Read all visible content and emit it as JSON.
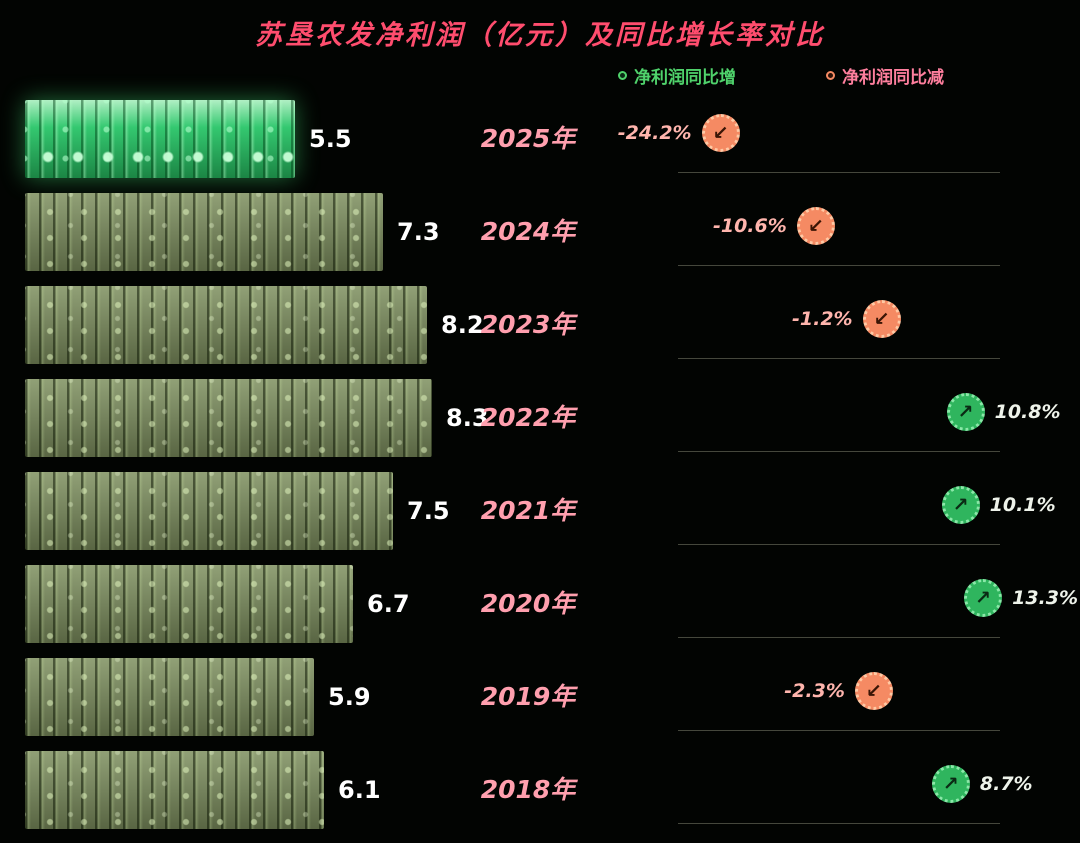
{
  "title": "苏垦农发净利润（亿元）及同比增长率对比",
  "legend": {
    "increase_label": "净利润同比增",
    "decrease_label": "净利润同比减"
  },
  "colors": {
    "background": "#020402",
    "title": "#ff4d6e",
    "year_label": "#ff9fae",
    "bar_value": "#ffffff",
    "bar_dim": "#7f9160",
    "bar_bright": "#2ec06a",
    "increase_icon": "#2fb55e",
    "decrease_icon": "#f58a63",
    "negative_text": "#ffb5ad",
    "positive_text": "#eef3ea"
  },
  "icons": {
    "decrease_arrow": "↙",
    "increase_arrow": "↗",
    "decrease_icon_name": "arrow-down-left-icon",
    "increase_icon_name": "arrow-up-right-icon"
  },
  "chart_data": {
    "type": "bar",
    "orientation": "horizontal",
    "title": "苏垦农发净利润（亿元）及同比增长率对比",
    "categories": [
      "2025年",
      "2024年",
      "2023年",
      "2022年",
      "2021年",
      "2020年",
      "2019年",
      "2018年"
    ],
    "series": [
      {
        "name": "净利润（亿元）",
        "values": [
          5.5,
          7.3,
          8.2,
          8.3,
          7.5,
          6.7,
          5.9,
          6.1
        ],
        "labels": [
          "5.5",
          "7.3",
          "8.2",
          "8.3",
          "7.5",
          "6.7",
          "5.9",
          "6.1"
        ]
      },
      {
        "name": "净利润同比增长率（%）",
        "values": [
          -24.2,
          -10.6,
          -1.2,
          10.8,
          10.1,
          13.3,
          -2.3,
          8.7
        ],
        "labels": [
          "-24.2%",
          "-10.6%",
          "-1.2%",
          "10.8%",
          "10.1%",
          "13.3%",
          "-2.3%",
          "8.7%"
        ]
      }
    ],
    "xlim": [
      0,
      8.8
    ],
    "growth_axis_range": [
      -30,
      16
    ],
    "grid": false,
    "legend_position": "top-right"
  }
}
